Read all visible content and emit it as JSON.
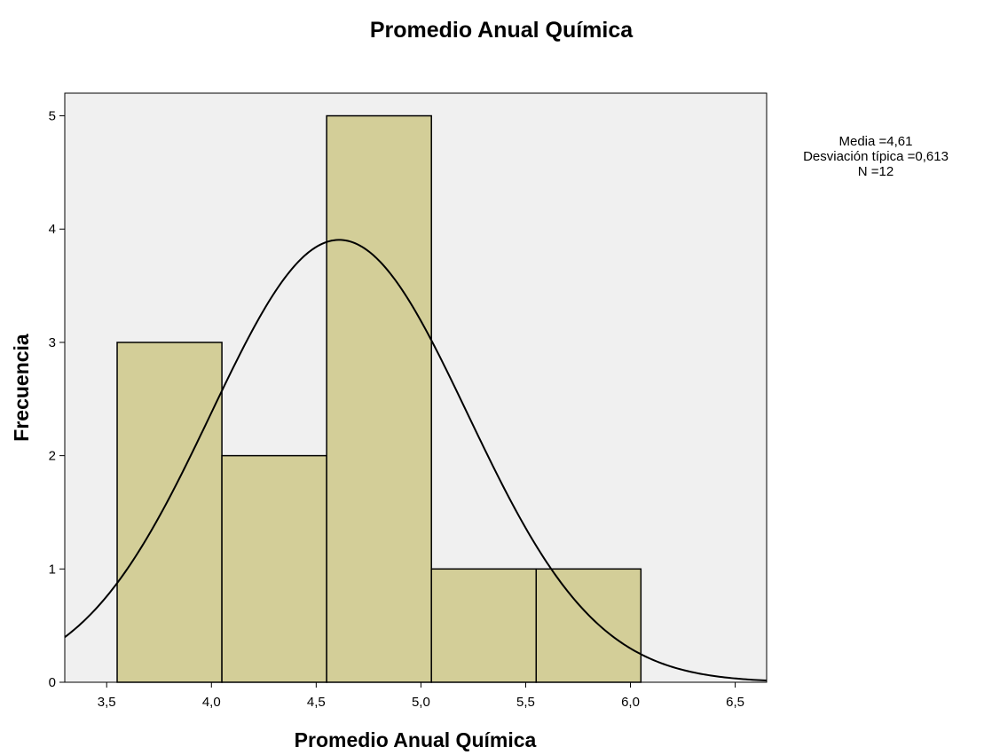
{
  "chart_data": {
    "type": "bar",
    "subtype": "histogram",
    "title": "Promedio Anual Química",
    "xlabel": "Promedio Anual Química",
    "ylabel": "Frecuencia",
    "xlim": [
      3.3,
      6.65
    ],
    "ylim": [
      0,
      5.2
    ],
    "x_ticks": [
      3.5,
      4.0,
      4.5,
      5.0,
      5.5,
      6.0,
      6.5
    ],
    "x_tick_labels": [
      "3,5",
      "4,0",
      "4,5",
      "5,0",
      "5,5",
      "6,0",
      "6,5"
    ],
    "y_ticks": [
      0,
      1,
      2,
      3,
      4,
      5
    ],
    "y_tick_labels": [
      "0",
      "1",
      "2",
      "3",
      "4",
      "5"
    ],
    "bins": [
      {
        "start": 3.55,
        "end": 4.05,
        "count": 3
      },
      {
        "start": 4.05,
        "end": 4.55,
        "count": 2
      },
      {
        "start": 4.55,
        "end": 5.05,
        "count": 5
      },
      {
        "start": 5.05,
        "end": 5.55,
        "count": 1
      },
      {
        "start": 5.55,
        "end": 6.05,
        "count": 1
      }
    ],
    "normal_curve": {
      "mean": 4.61,
      "sd": 0.613,
      "n": 12,
      "bin_width": 0.5
    },
    "stats": [
      "Media =4,61",
      "Desviación típica =0,613",
      "N =12"
    ],
    "colors": {
      "bar_fill": "#D3CE98",
      "plot_bg": "#F0F0F0",
      "curve": "#000000",
      "border": "#000000"
    },
    "grid": false,
    "legend": "none"
  }
}
